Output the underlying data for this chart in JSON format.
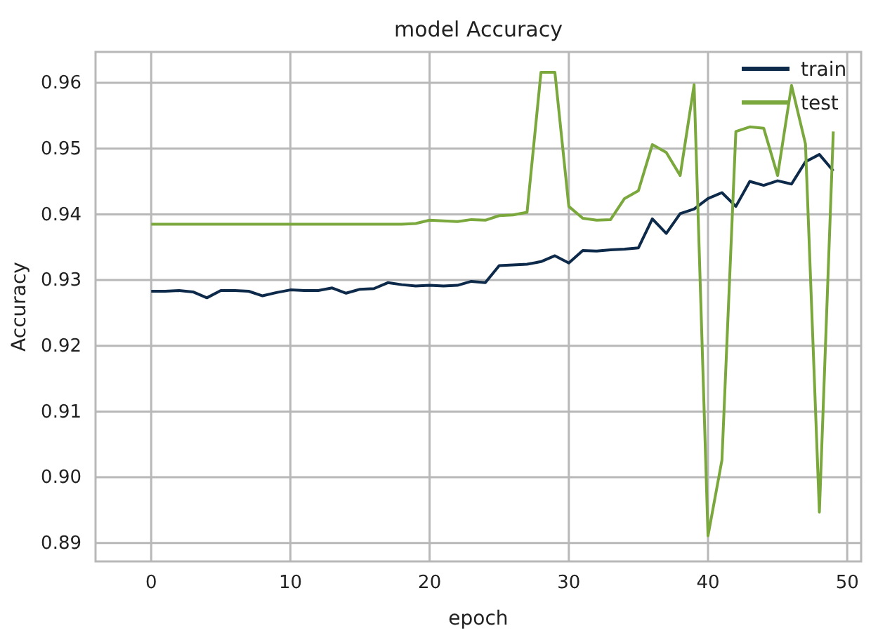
{
  "chart_data": {
    "type": "line",
    "title": "model Accuracy",
    "xlabel": "epoch",
    "ylabel": "Accuracy",
    "x": [
      0,
      1,
      2,
      3,
      4,
      5,
      6,
      7,
      8,
      9,
      10,
      11,
      12,
      13,
      14,
      15,
      16,
      17,
      18,
      19,
      20,
      21,
      22,
      23,
      24,
      25,
      26,
      27,
      28,
      29,
      30,
      31,
      32,
      33,
      34,
      35,
      36,
      37,
      38,
      39,
      40,
      41,
      42,
      43,
      44,
      45,
      46,
      47,
      48,
      49
    ],
    "series": [
      {
        "name": "train",
        "color": "#0d2a4a",
        "values": [
          0.9283,
          0.9283,
          0.9284,
          0.9282,
          0.9273,
          0.9284,
          0.9284,
          0.9283,
          0.9276,
          0.9281,
          0.9285,
          0.9284,
          0.9284,
          0.9288,
          0.928,
          0.9286,
          0.9287,
          0.9296,
          0.9293,
          0.9291,
          0.9292,
          0.9291,
          0.9292,
          0.9298,
          0.9296,
          0.9322,
          0.9323,
          0.9324,
          0.9328,
          0.9337,
          0.9326,
          0.9345,
          0.9344,
          0.9346,
          0.9347,
          0.9349,
          0.9393,
          0.9371,
          0.9401,
          0.9408,
          0.9424,
          0.9433,
          0.9412,
          0.945,
          0.9444,
          0.9451,
          0.9446,
          0.948,
          0.9491,
          0.9466
        ]
      },
      {
        "name": "test",
        "color": "#7aa83c",
        "values": [
          0.9385,
          0.9385,
          0.9385,
          0.9385,
          0.9385,
          0.9385,
          0.9385,
          0.9385,
          0.9385,
          0.9385,
          0.9385,
          0.9385,
          0.9385,
          0.9385,
          0.9385,
          0.9385,
          0.9385,
          0.9385,
          0.9385,
          0.9386,
          0.9391,
          0.939,
          0.9389,
          0.9392,
          0.9391,
          0.9398,
          0.9399,
          0.9403,
          0.9616,
          0.9616,
          0.9412,
          0.9394,
          0.9391,
          0.9392,
          0.9424,
          0.9436,
          0.9506,
          0.9494,
          0.9459,
          0.9597,
          0.8911,
          0.9026,
          0.9526,
          0.9533,
          0.9531,
          0.9459,
          0.9596,
          0.9507,
          0.8947,
          0.9526
        ]
      }
    ],
    "xlim": [
      -4,
      51
    ],
    "xticks": [
      0,
      10,
      20,
      30,
      40,
      50
    ],
    "ylim": [
      0.8872,
      0.9647
    ],
    "yticks": [
      {
        "value": 0.89,
        "label": "0.89"
      },
      {
        "value": 0.9,
        "label": "0.90"
      },
      {
        "value": 0.91,
        "label": "0.91"
      },
      {
        "value": 0.92,
        "label": "0.92"
      },
      {
        "value": 0.93,
        "label": "0.93"
      },
      {
        "value": 0.94,
        "label": "0.94"
      },
      {
        "value": 0.95,
        "label": "0.95"
      },
      {
        "value": 0.96,
        "label": "0.96"
      }
    ],
    "grid": true,
    "legend": "top right"
  }
}
